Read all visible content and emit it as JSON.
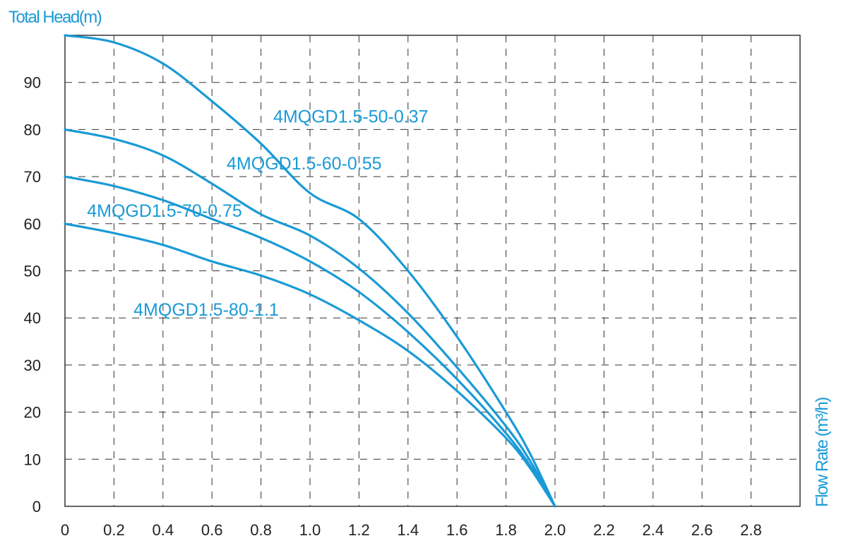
{
  "chart_data": {
    "type": "line",
    "ylabel": "Total Head(m)",
    "xlabel": "Flow Rate (m³/h)",
    "xlim": [
      0,
      3.0
    ],
    "ylim": [
      0,
      100
    ],
    "x_ticks": [
      "0",
      "0.2",
      "0.4",
      "0.6",
      "0.8",
      "1.0",
      "1.2",
      "1.4",
      "1.6",
      "1.8",
      "2.0",
      "2.2",
      "2.4",
      "2.6",
      "2.8"
    ],
    "y_ticks": [
      "0",
      "10",
      "20",
      "30",
      "40",
      "50",
      "60",
      "70",
      "80",
      "90"
    ],
    "grid": true,
    "colors": {
      "series": "#1a9ad6",
      "text_accent": "#1a9ad6",
      "ticks": "#222222",
      "frame": "#333333"
    },
    "series": [
      {
        "name": "4MQGD1.5-50-0.37",
        "x": [
          0,
          0.2,
          0.4,
          0.6,
          0.8,
          1.0,
          1.2,
          1.4,
          1.6,
          1.8,
          1.9,
          2.0
        ],
        "y": [
          100,
          98.5,
          94,
          86,
          77,
          66.5,
          61,
          50,
          36,
          20,
          11,
          0
        ]
      },
      {
        "name": "4MQGD1.5-60-0.55",
        "x": [
          0,
          0.2,
          0.4,
          0.6,
          0.8,
          1.0,
          1.2,
          1.4,
          1.6,
          1.8,
          1.9,
          2.0
        ],
        "y": [
          80,
          78,
          74.5,
          68.5,
          62,
          57.5,
          50.5,
          41,
          29.5,
          17,
          9.5,
          0
        ]
      },
      {
        "name": "4MQGD1.5-70-0.75",
        "x": [
          0,
          0.2,
          0.4,
          0.6,
          0.8,
          1.0,
          1.2,
          1.4,
          1.6,
          1.8,
          1.9,
          2.0
        ],
        "y": [
          70,
          68,
          65,
          61,
          57,
          52,
          45.5,
          37,
          27,
          15.5,
          8.5,
          0
        ]
      },
      {
        "name": "4MQGD1.5-80-1.1",
        "x": [
          0,
          0.2,
          0.4,
          0.6,
          0.8,
          1.0,
          1.2,
          1.4,
          1.6,
          1.8,
          1.9,
          2.0
        ],
        "y": [
          60,
          58,
          55.5,
          52,
          49,
          45,
          39.5,
          33,
          24.5,
          14.5,
          8,
          0
        ]
      }
    ],
    "labels": [
      {
        "text": "4MQGD1.5-50-0.37",
        "x": 0.85,
        "y": 81.5
      },
      {
        "text": "4MQGD1.5-60-0.55",
        "x": 0.66,
        "y": 71.5
      },
      {
        "text": "4MQGD1.5-70-0.75",
        "x": 0.09,
        "y": 61.5
      },
      {
        "text": "4MQGD1.5-80-1.1",
        "x": 0.28,
        "y": 40.5
      }
    ]
  }
}
